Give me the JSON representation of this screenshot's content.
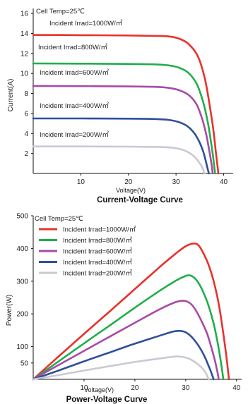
{
  "chart_data": [
    {
      "type": "line",
      "title": "Current-Voltage Curve",
      "xlabel": "Voltage(V)",
      "ylabel": "Current(A)",
      "annotation": "Cell Temp=25℃",
      "xlim": [
        0,
        42
      ],
      "ylim": [
        0,
        16.5
      ],
      "xticks": [
        10,
        20,
        30,
        40
      ],
      "yticks": [
        2,
        4,
        6,
        8,
        10,
        12,
        14,
        16
      ],
      "legend": "inline labels above curves",
      "series": [
        {
          "name": "Incident Irrad=1000W/㎡",
          "color": "#e8322c",
          "x": [
            0,
            10,
            20,
            26,
            28.5,
            30.5,
            32.5,
            34.5,
            36,
            37,
            37.8,
            38.4,
            38.9
          ],
          "y": [
            13.85,
            13.83,
            13.8,
            13.75,
            13.7,
            13.5,
            13.0,
            11.8,
            9.6,
            7.0,
            4.5,
            2.0,
            0
          ]
        },
        {
          "name": "Incident Irrad=800W/㎡",
          "color": "#1fae4b",
          "x": [
            0,
            10,
            20,
            26,
            28.5,
            30.5,
            32.5,
            34.3,
            35.6,
            36.6,
            37.3,
            37.8,
            38.2
          ],
          "y": [
            11.0,
            10.98,
            10.95,
            10.9,
            10.8,
            10.6,
            10.1,
            9.0,
            7.3,
            5.3,
            3.3,
            1.6,
            0
          ]
        },
        {
          "name": "Incident Irrad=600W/㎡",
          "color": "#a84aa8",
          "x": [
            0,
            10,
            20,
            26,
            28.5,
            30.5,
            32.5,
            34.2,
            35.4,
            36.3,
            36.9,
            37.4,
            37.7
          ],
          "y": [
            8.75,
            8.73,
            8.7,
            8.65,
            8.55,
            8.35,
            7.9,
            7.0,
            5.6,
            4.0,
            2.5,
            1.1,
            0
          ]
        },
        {
          "name": "Incident Irrad=400W/㎡",
          "color": "#2f4f9a",
          "x": [
            0,
            10,
            20,
            26,
            28.5,
            30.5,
            32.3,
            33.8,
            34.9,
            35.7,
            36.2,
            36.6,
            36.9
          ],
          "y": [
            5.5,
            5.5,
            5.48,
            5.44,
            5.35,
            5.15,
            4.75,
            4.05,
            3.15,
            2.2,
            1.35,
            0.55,
            0
          ]
        },
        {
          "name": "Incident Irrad=200W/㎡",
          "color": "#c9c9d3",
          "x": [
            0,
            10,
            20,
            26,
            28.5,
            30.5,
            32.0,
            33.3,
            34.3,
            35.0,
            35.5,
            35.8,
            36.0
          ],
          "y": [
            2.7,
            2.7,
            2.68,
            2.65,
            2.6,
            2.48,
            2.25,
            1.9,
            1.45,
            1.0,
            0.6,
            0.25,
            0
          ]
        }
      ]
    },
    {
      "type": "line",
      "title": "Power-Voltage Curve",
      "xlabel": "Voltage(V)",
      "ylabel": "Power(W)",
      "annotation": "Cell Temp=25℃",
      "xlim": [
        0,
        41
      ],
      "ylim": [
        0,
        500
      ],
      "xticks": [
        10,
        20,
        30,
        40
      ],
      "yticks": [
        50,
        100,
        200,
        300,
        400,
        500
      ],
      "legend": "top-left",
      "series": [
        {
          "name": "Incident Irrad=1000W/㎡",
          "color": "#e8322c",
          "x": [
            0,
            5,
            10,
            15,
            20,
            25,
            28,
            30,
            31.5,
            32.5,
            33.5,
            34.5,
            35.5,
            36.5,
            37.3,
            38.0,
            38.5
          ],
          "y": [
            0,
            70,
            139,
            207,
            276,
            345,
            384,
            407,
            415,
            410,
            385,
            350,
            300,
            230,
            150,
            70,
            0
          ]
        },
        {
          "name": "Incident Irrad=800W/㎡",
          "color": "#1fae4b",
          "x": [
            0,
            5,
            10,
            15,
            20,
            25,
            28,
            29.5,
            30.5,
            31.5,
            32.5,
            33.5,
            34.5,
            35.5,
            36.3,
            37.0,
            37.4
          ],
          "y": [
            0,
            55,
            110,
            164,
            219,
            272,
            301,
            313,
            318,
            313,
            295,
            265,
            225,
            170,
            110,
            45,
            0
          ]
        },
        {
          "name": "Incident Irrad=600W/㎡",
          "color": "#a84aa8",
          "x": [
            0,
            5,
            10,
            15,
            20,
            25,
            28,
            29.5,
            30.5,
            31.3,
            32.2,
            33.2,
            34.2,
            35.0,
            35.7,
            36.2,
            36.5
          ],
          "y": [
            0,
            44,
            87,
            130,
            173,
            215,
            236,
            240,
            236,
            226,
            205,
            175,
            140,
            100,
            60,
            25,
            0
          ]
        },
        {
          "name": "Incident Irrad=400W/㎡",
          "color": "#2f4f9a",
          "x": [
            0,
            5,
            10,
            15,
            20,
            25,
            27.5,
            28.7,
            29.8,
            30.8,
            31.8,
            32.8,
            33.7,
            34.4,
            35.0,
            35.5
          ],
          "y": [
            0,
            27,
            55,
            82,
            109,
            134,
            146,
            148,
            145,
            135,
            118,
            96,
            70,
            45,
            22,
            0
          ]
        },
        {
          "name": "Incident Irrad=200W/㎡",
          "color": "#c9c9d3",
          "x": [
            0,
            5,
            10,
            15,
            20,
            25,
            27.5,
            28.5,
            29.5,
            30.5,
            31.5,
            32.5,
            33.3,
            34.0,
            34.5
          ],
          "y": [
            0,
            13,
            27,
            40,
            53,
            64,
            69,
            70,
            68,
            64,
            56,
            45,
            33,
            18,
            0
          ]
        }
      ]
    }
  ]
}
